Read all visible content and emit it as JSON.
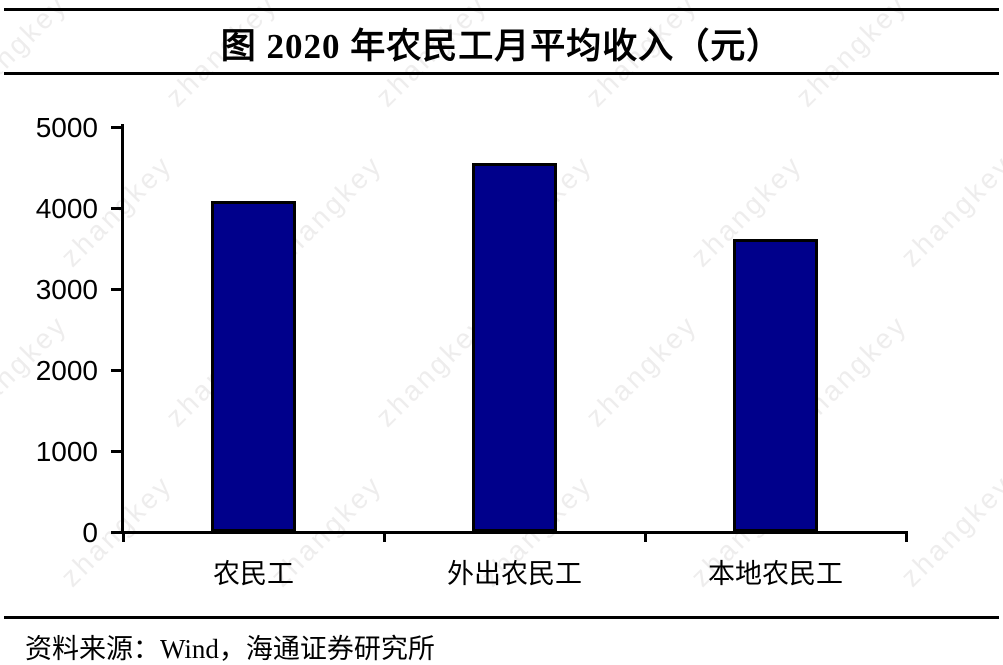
{
  "page": {
    "watermark": "zhangkey"
  },
  "header": {
    "title": "图  2020 年农民工月平均收入（元）"
  },
  "chart_data": {
    "type": "bar",
    "title": "图  2020 年农民工月平均收入（元）",
    "categories": [
      "农民工",
      "外出农民工",
      "本地农民工"
    ],
    "values": [
      4072,
      4549,
      3606
    ],
    "xlabel": "",
    "ylabel": "",
    "ylim": [
      0,
      5000
    ],
    "yticks": [
      0,
      1000,
      2000,
      3000,
      4000,
      5000
    ],
    "grid": "off",
    "legend": "none",
    "bar_color": "#00008B",
    "bar_border_color": "#000000",
    "axis_color": "#000000"
  },
  "footer": {
    "source": "资料来源：Wind，海通证券研究所"
  }
}
